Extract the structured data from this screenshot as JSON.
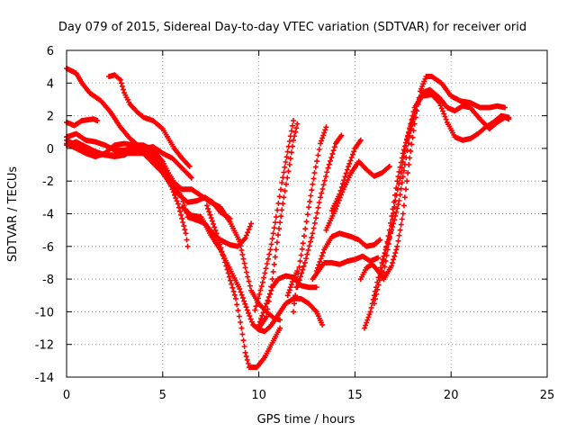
{
  "chart_data": {
    "type": "scatter",
    "title": "Day 079 of 2015, Sidereal Day-to-day VTEC variation (SDTVAR) for receiver orid",
    "xlabel": "GPS time / hours",
    "ylabel": "SDTVAR / TECUs",
    "xlim": [
      0,
      25
    ],
    "ylim": [
      -14,
      6
    ],
    "xticks": [
      0,
      5,
      10,
      15,
      20,
      25
    ],
    "yticks": [
      -14,
      -12,
      -10,
      -8,
      -6,
      -4,
      -2,
      0,
      2,
      4,
      6
    ],
    "grid": true,
    "grid_style": "dotted",
    "marker": "+",
    "color": "#ff0000",
    "series": [
      {
        "points": [
          [
            0.0,
            4.9
          ],
          [
            0.5,
            4.6
          ],
          [
            0.8,
            4.0
          ],
          [
            1.2,
            3.4
          ],
          [
            1.8,
            2.9
          ],
          [
            2.3,
            2.2
          ],
          [
            2.8,
            1.3
          ],
          [
            3.3,
            0.6
          ],
          [
            3.8,
            0.1
          ],
          [
            4.3,
            -0.2
          ],
          [
            4.8,
            -0.8
          ],
          [
            5.2,
            -1.6
          ],
          [
            5.5,
            -2.5
          ],
          [
            5.8,
            -3.4
          ],
          [
            6.0,
            -4.3
          ],
          [
            6.2,
            -5.2
          ],
          [
            6.3,
            -6.0
          ]
        ]
      },
      {
        "points": [
          [
            0.0,
            1.6
          ],
          [
            0.4,
            1.4
          ],
          [
            0.8,
            1.7
          ],
          [
            1.4,
            1.8
          ],
          [
            1.6,
            1.7
          ]
        ]
      },
      {
        "points": [
          [
            0.0,
            0.5
          ],
          [
            0.5,
            0.2
          ],
          [
            1.0,
            -0.1
          ],
          [
            1.5,
            -0.3
          ],
          [
            2.0,
            -0.4
          ],
          [
            2.5,
            -0.4
          ],
          [
            3.0,
            -0.3
          ],
          [
            3.5,
            -0.3
          ],
          [
            4.0,
            -0.3
          ],
          [
            4.5,
            -0.6
          ],
          [
            5.0,
            -1.2
          ],
          [
            5.3,
            -1.7
          ],
          [
            5.6,
            -2.2
          ],
          [
            6.0,
            -3.0
          ],
          [
            6.3,
            -4.2
          ],
          [
            6.8,
            -4.4
          ],
          [
            7.2,
            -4.6
          ],
          [
            7.6,
            -5.2
          ],
          [
            8.0,
            -5.6
          ],
          [
            8.5,
            -5.9
          ],
          [
            8.9,
            -6.0
          ],
          [
            9.3,
            -5.5
          ],
          [
            9.6,
            -4.6
          ]
        ]
      },
      {
        "points": [
          [
            0.0,
            0.2
          ],
          [
            0.5,
            0.4
          ],
          [
            1.0,
            0.1
          ],
          [
            1.5,
            -0.2
          ],
          [
            2.0,
            -0.4
          ],
          [
            2.5,
            -0.5
          ],
          [
            3.0,
            -0.4
          ],
          [
            3.5,
            -0.1
          ],
          [
            4.0,
            -0.3
          ],
          [
            4.5,
            -0.9
          ],
          [
            5.0,
            -1.5
          ],
          [
            5.4,
            -2.2
          ],
          [
            5.8,
            -2.8
          ],
          [
            6.3,
            -3.3
          ],
          [
            6.8,
            -3.2
          ],
          [
            7.2,
            -3.0
          ],
          [
            7.6,
            -3.3
          ],
          [
            8.0,
            -3.9
          ],
          [
            8.5,
            -4.3
          ]
        ]
      },
      {
        "points": [
          [
            0.0,
            0.7
          ],
          [
            0.5,
            0.9
          ],
          [
            1.0,
            0.5
          ],
          [
            1.5,
            0.4
          ],
          [
            2.0,
            0.2
          ],
          [
            2.5,
            -0.1
          ],
          [
            3.0,
            -0.1
          ],
          [
            3.5,
            0.0
          ],
          [
            4.0,
            0.0
          ],
          [
            4.5,
            0.1
          ],
          [
            5.0,
            -0.3
          ],
          [
            5.5,
            -0.6
          ],
          [
            6.0,
            -1.2
          ],
          [
            6.5,
            -1.8
          ]
        ]
      },
      {
        "points": [
          [
            0.0,
            0.3
          ],
          [
            0.5,
            0.0
          ],
          [
            1.0,
            -0.3
          ],
          [
            1.5,
            -0.5
          ],
          [
            2.0,
            -0.3
          ],
          [
            2.5,
            0.2
          ],
          [
            3.0,
            0.3
          ],
          [
            3.5,
            0.2
          ],
          [
            4.0,
            0.2
          ],
          [
            4.5,
            -0.1
          ],
          [
            5.0,
            -0.8
          ],
          [
            5.3,
            -1.5
          ],
          [
            5.6,
            -2.1
          ],
          [
            6.0,
            -2.5
          ],
          [
            6.5,
            -2.5
          ],
          [
            7.0,
            -2.9
          ],
          [
            7.5,
            -3.3
          ],
          [
            8.0,
            -3.6
          ],
          [
            8.5,
            -4.5
          ],
          [
            9.0,
            -5.7
          ],
          [
            9.3,
            -7.3
          ],
          [
            9.6,
            -8.7
          ],
          [
            10.0,
            -9.5
          ],
          [
            10.4,
            -10.0
          ],
          [
            10.8,
            -10.4
          ],
          [
            11.1,
            -10.5
          ]
        ]
      },
      {
        "points": [
          [
            2.2,
            4.4
          ],
          [
            2.5,
            4.5
          ],
          [
            2.8,
            4.2
          ],
          [
            3.0,
            3.4
          ],
          [
            3.3,
            2.7
          ],
          [
            3.7,
            2.2
          ],
          [
            4.0,
            1.9
          ],
          [
            4.5,
            1.7
          ],
          [
            5.0,
            1.2
          ],
          [
            5.3,
            0.6
          ],
          [
            5.6,
            0.0
          ],
          [
            6.0,
            -0.6
          ],
          [
            6.4,
            -1.1
          ]
        ]
      },
      {
        "points": [
          [
            6.0,
            -3.6
          ],
          [
            6.5,
            -4.1
          ],
          [
            7.0,
            -4.2
          ],
          [
            7.5,
            -5.3
          ],
          [
            8.0,
            -6.2
          ],
          [
            8.5,
            -7.4
          ],
          [
            9.0,
            -8.6
          ],
          [
            9.4,
            -9.9
          ],
          [
            9.7,
            -10.8
          ],
          [
            10.0,
            -11.1
          ],
          [
            10.3,
            -11.2
          ],
          [
            10.6,
            -10.9
          ],
          [
            11.0,
            -10.2
          ],
          [
            11.4,
            -9.5
          ],
          [
            11.8,
            -9.2
          ],
          [
            12.2,
            -9.2
          ],
          [
            12.6,
            -9.5
          ],
          [
            13.0,
            -10.0
          ],
          [
            13.3,
            -10.8
          ]
        ]
      },
      {
        "points": [
          [
            7.3,
            -3.5
          ],
          [
            7.8,
            -5.2
          ],
          [
            8.3,
            -7.2
          ],
          [
            8.8,
            -9.2
          ],
          [
            9.1,
            -11.0
          ],
          [
            9.3,
            -12.5
          ],
          [
            9.5,
            -13.4
          ],
          [
            9.9,
            -13.4
          ],
          [
            10.3,
            -12.8
          ],
          [
            10.7,
            -11.9
          ],
          [
            11.1,
            -11.0
          ]
        ]
      },
      {
        "points": [
          [
            10.0,
            -10.8
          ],
          [
            10.4,
            -9.5
          ],
          [
            10.7,
            -8.5
          ],
          [
            11.0,
            -8.0
          ],
          [
            11.4,
            -7.8
          ],
          [
            11.8,
            -7.9
          ],
          [
            12.2,
            -8.4
          ],
          [
            12.6,
            -8.5
          ],
          [
            13.0,
            -8.5
          ]
        ]
      },
      {
        "points": [
          [
            9.8,
            -9.9
          ],
          [
            10.2,
            -8.2
          ],
          [
            10.6,
            -6.2
          ],
          [
            10.9,
            -4.2
          ],
          [
            11.2,
            -2.1
          ],
          [
            11.5,
            -0.2
          ],
          [
            11.8,
            1.7
          ]
        ]
      },
      {
        "points": [
          [
            10.0,
            -11.0
          ],
          [
            10.4,
            -10.3
          ],
          [
            10.7,
            -8.0
          ],
          [
            11.0,
            -5.3
          ],
          [
            11.3,
            -3.0
          ],
          [
            11.6,
            -1.0
          ],
          [
            11.8,
            0.5
          ],
          [
            12.0,
            1.5
          ]
        ]
      },
      {
        "points": [
          [
            11.8,
            -10.0
          ],
          [
            12.0,
            -8.0
          ],
          [
            12.3,
            -5.8
          ],
          [
            12.6,
            -3.6
          ],
          [
            12.9,
            -1.5
          ],
          [
            13.2,
            0.3
          ],
          [
            13.5,
            1.3
          ]
        ]
      },
      {
        "points": [
          [
            12.0,
            -8.5
          ],
          [
            12.4,
            -7.0
          ],
          [
            12.8,
            -5.2
          ],
          [
            13.2,
            -3.0
          ],
          [
            13.6,
            -1.2
          ],
          [
            14.0,
            0.3
          ],
          [
            14.3,
            0.8
          ]
        ]
      },
      {
        "points": [
          [
            11.5,
            -9.0
          ],
          [
            11.8,
            -8.0
          ],
          [
            12.0,
            -7.5
          ]
        ]
      },
      {
        "points": [
          [
            13.0,
            -7.5
          ],
          [
            13.4,
            -6.2
          ],
          [
            13.8,
            -5.4
          ],
          [
            14.2,
            -5.2
          ],
          [
            14.8,
            -5.4
          ],
          [
            15.2,
            -5.6
          ],
          [
            15.6,
            -6.0
          ],
          [
            16.0,
            -5.9
          ],
          [
            16.3,
            -5.6
          ]
        ]
      },
      {
        "points": [
          [
            12.8,
            -8.0
          ],
          [
            13.4,
            -7.0
          ],
          [
            13.8,
            -7.0
          ],
          [
            14.2,
            -7.1
          ],
          [
            14.6,
            -6.9
          ],
          [
            15.0,
            -6.8
          ],
          [
            15.4,
            -6.6
          ],
          [
            15.8,
            -6.9
          ],
          [
            16.2,
            -6.7
          ]
        ]
      },
      {
        "points": [
          [
            13.5,
            -5.0
          ],
          [
            14.0,
            -3.7
          ],
          [
            14.4,
            -2.5
          ],
          [
            14.8,
            -1.5
          ],
          [
            15.2,
            -0.8
          ],
          [
            15.6,
            -1.3
          ],
          [
            16.0,
            -1.7
          ],
          [
            16.4,
            -1.5
          ],
          [
            16.8,
            -1.1
          ]
        ]
      },
      {
        "points": [
          [
            13.8,
            -3.8
          ],
          [
            14.2,
            -2.8
          ],
          [
            14.6,
            -1.3
          ],
          [
            15.0,
            0.0
          ],
          [
            15.3,
            0.5
          ]
        ]
      },
      {
        "points": [
          [
            15.3,
            -8.0
          ],
          [
            15.6,
            -7.3
          ],
          [
            15.9,
            -7.1
          ],
          [
            16.2,
            -7.5
          ],
          [
            16.5,
            -8.0
          ],
          [
            16.9,
            -7.2
          ],
          [
            17.2,
            -6.0
          ],
          [
            17.5,
            -4.0
          ],
          [
            17.8,
            -1.0
          ],
          [
            18.1,
            1.5
          ],
          [
            18.4,
            3.5
          ],
          [
            18.7,
            4.4
          ],
          [
            19.0,
            4.4
          ],
          [
            19.5,
            4.0
          ],
          [
            20.0,
            3.2
          ],
          [
            20.5,
            2.9
          ],
          [
            21.0,
            2.8
          ],
          [
            21.5,
            2.5
          ],
          [
            22.0,
            2.5
          ],
          [
            22.4,
            2.6
          ],
          [
            22.8,
            2.5
          ]
        ]
      },
      {
        "points": [
          [
            15.5,
            -11.0
          ],
          [
            15.8,
            -10.0
          ],
          [
            16.1,
            -8.5
          ],
          [
            16.4,
            -7.0
          ],
          [
            16.7,
            -5.8
          ],
          [
            17.0,
            -4.6
          ],
          [
            17.3,
            -3.2
          ],
          [
            17.6,
            -1.0
          ],
          [
            17.9,
            1.2
          ],
          [
            18.2,
            2.6
          ],
          [
            18.5,
            3.4
          ],
          [
            18.9,
            3.6
          ],
          [
            19.4,
            3.1
          ],
          [
            19.8,
            2.5
          ],
          [
            20.2,
            2.3
          ],
          [
            20.6,
            2.6
          ],
          [
            21.0,
            2.5
          ],
          [
            21.5,
            1.8
          ],
          [
            22.0,
            1.2
          ],
          [
            22.4,
            1.6
          ],
          [
            22.8,
            1.9
          ],
          [
            23.0,
            1.8
          ]
        ]
      },
      {
        "points": [
          [
            16.0,
            -9.5
          ],
          [
            16.4,
            -7.5
          ],
          [
            16.8,
            -5.0
          ],
          [
            17.2,
            -2.0
          ],
          [
            17.5,
            -0.3
          ],
          [
            17.8,
            1.0
          ],
          [
            18.1,
            2.5
          ],
          [
            18.5,
            3.2
          ],
          [
            19.0,
            3.3
          ],
          [
            19.4,
            2.8
          ],
          [
            19.8,
            1.6
          ],
          [
            20.2,
            0.7
          ],
          [
            20.6,
            0.5
          ],
          [
            21.0,
            0.6
          ],
          [
            21.4,
            0.9
          ],
          [
            21.8,
            1.3
          ],
          [
            22.2,
            1.6
          ],
          [
            22.6,
            2.0
          ],
          [
            23.0,
            1.9
          ]
        ]
      },
      {
        "points": [
          [
            16.5,
            -7.6
          ],
          [
            16.8,
            -5.5
          ],
          [
            17.1,
            -3.2
          ],
          [
            17.4,
            -1.5
          ],
          [
            17.7,
            0.5
          ],
          [
            18.0,
            1.8
          ]
        ]
      }
    ]
  }
}
